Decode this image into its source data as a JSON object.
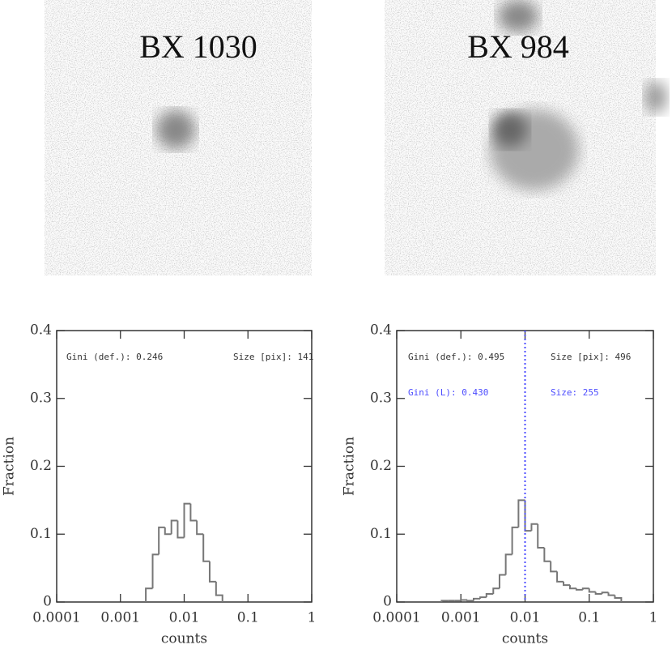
{
  "chart_data": [
    {
      "type": "histogram",
      "title": "BX 1030",
      "xlabel": "counts",
      "ylabel": "Fraction",
      "xlog": true,
      "xlim": [
        0.0001,
        1
      ],
      "xticks": [
        0.0001,
        0.001,
        0.01,
        0.1,
        1
      ],
      "ylim": [
        0,
        0.4
      ],
      "yticks": [
        0,
        0.1,
        0.2,
        0.3,
        0.4
      ],
      "color": "#777777",
      "bins": [
        0.0025,
        0.0032,
        0.004,
        0.005,
        0.0063,
        0.0079,
        0.01,
        0.0126,
        0.0158,
        0.02,
        0.0251,
        0.0316,
        0.0398
      ],
      "values": [
        0.02,
        0.07,
        0.11,
        0.1,
        0.12,
        0.095,
        0.145,
        0.12,
        0.1,
        0.06,
        0.03,
        0.01
      ],
      "annotations": [
        {
          "text": "Gini (def.): 0.246",
          "color": "#333333"
        },
        {
          "text": "Size [pix]: 141",
          "color": "#333333"
        }
      ]
    },
    {
      "type": "histogram",
      "title": "BX 984",
      "xlabel": "counts",
      "ylabel": "Fraction",
      "xlog": true,
      "xlim": [
        0.0001,
        1
      ],
      "xticks": [
        0.0001,
        0.001,
        0.01,
        0.1,
        1
      ],
      "ylim": [
        0,
        0.4
      ],
      "yticks": [
        0,
        0.1,
        0.2,
        0.3,
        0.4
      ],
      "color": "#777777",
      "bins": [
        0.0005,
        0.00063,
        0.00079,
        0.001,
        0.00126,
        0.00158,
        0.002,
        0.0025,
        0.0032,
        0.004,
        0.005,
        0.0063,
        0.0079,
        0.01,
        0.0126,
        0.0158,
        0.02,
        0.0251,
        0.0316,
        0.0398,
        0.0501,
        0.0631,
        0.0794,
        0.1,
        0.1259,
        0.1585,
        0.1995,
        0.2512,
        0.3162
      ],
      "values": [
        0.002,
        0.002,
        0.002,
        0.003,
        0.002,
        0.005,
        0.007,
        0.012,
        0.02,
        0.04,
        0.07,
        0.11,
        0.15,
        0.105,
        0.115,
        0.08,
        0.06,
        0.045,
        0.03,
        0.025,
        0.02,
        0.018,
        0.02,
        0.015,
        0.012,
        0.014,
        0.01,
        0.006
      ],
      "vline": {
        "x": 0.01,
        "color": "#4d4dff"
      },
      "annotations": [
        {
          "text": "Gini (def.): 0.495",
          "color": "#333333"
        },
        {
          "text": "Size [pix]: 496",
          "color": "#333333"
        },
        {
          "text": "Gini (L): 0.430",
          "color": "#4d4dff"
        },
        {
          "text": "Size: 255",
          "color": "#4d4dff"
        }
      ]
    }
  ]
}
